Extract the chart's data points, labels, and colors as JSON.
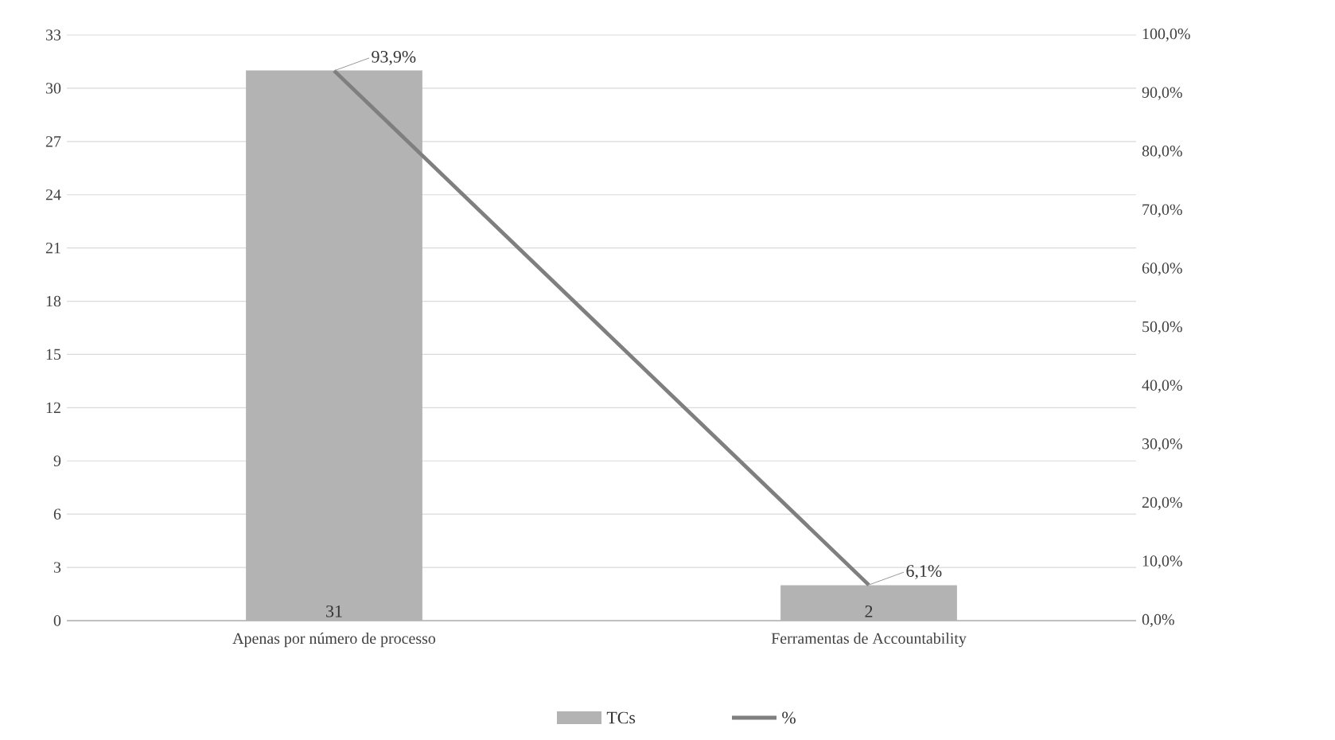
{
  "chart_data": {
    "type": "bar",
    "categories": [
      "Apenas por número de processo",
      "Ferramentas de Accountability"
    ],
    "series": [
      {
        "name": "TCs",
        "color": "#b3b3b3",
        "values": [
          31,
          2
        ],
        "value_labels": [
          "31",
          "2"
        ]
      },
      {
        "name": "%",
        "type": "line",
        "axis": "y2",
        "color": "#7f7f7f",
        "values": [
          93.9,
          6.1
        ],
        "value_labels": [
          "93,9%",
          "6,1%"
        ]
      }
    ],
    "ylim": [
      0,
      33
    ],
    "yticks": [
      0,
      3,
      6,
      9,
      12,
      15,
      18,
      21,
      24,
      27,
      30,
      33
    ],
    "y2lim": [
      0,
      100
    ],
    "y2ticks": [
      {
        "value": 0,
        "label": "0,0%"
      },
      {
        "value": 10,
        "label": "10,0%"
      },
      {
        "value": 20,
        "label": "20,0%"
      },
      {
        "value": 30,
        "label": "30,0%"
      },
      {
        "value": 40,
        "label": "40,0%"
      },
      {
        "value": 50,
        "label": "50,0%"
      },
      {
        "value": 60,
        "label": "60,0%"
      },
      {
        "value": 70,
        "label": "70,0%"
      },
      {
        "value": 80,
        "label": "80,0%"
      },
      {
        "value": 90,
        "label": "90,0%"
      },
      {
        "value": 100,
        "label": "100,0%"
      }
    ],
    "grid": "y",
    "legend": "bottom"
  }
}
